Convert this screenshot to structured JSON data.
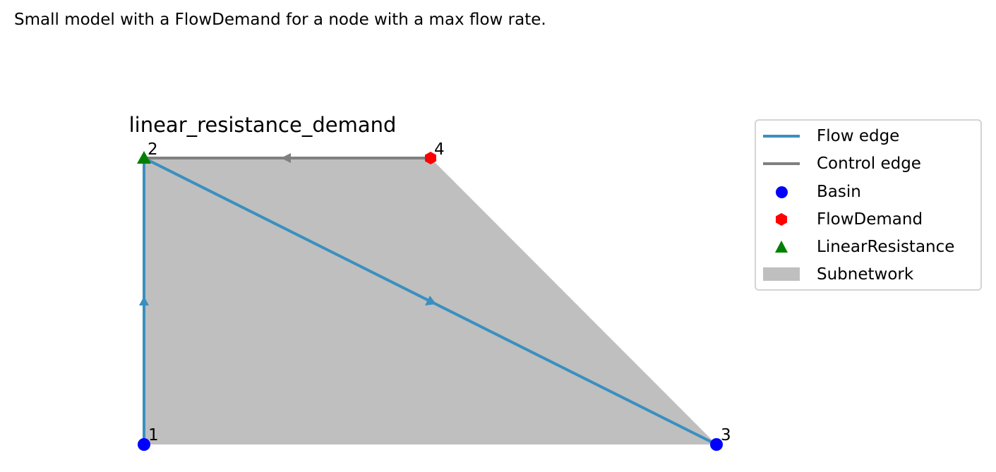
{
  "caption": "Small model with a FlowDemand for a node with a max flow rate.",
  "subnetwork_title": "linear_resistance_demand",
  "nodes": [
    {
      "id": "1",
      "label": "1",
      "type": "Basin"
    },
    {
      "id": "2",
      "label": "2",
      "type": "LinearResistance"
    },
    {
      "id": "3",
      "label": "3",
      "type": "Basin"
    },
    {
      "id": "4",
      "label": "4",
      "type": "FlowDemand"
    }
  ],
  "edges": [
    {
      "from": "1",
      "to": "2",
      "type": "Flow edge"
    },
    {
      "from": "2",
      "to": "3",
      "type": "Flow edge"
    },
    {
      "from": "4",
      "to": "2",
      "type": "Control edge"
    }
  ],
  "colors": {
    "flow_edge": "#3a8fc0",
    "control_edge": "#808080",
    "basin": "#0000ff",
    "flow_demand": "#ff0000",
    "linear_resistance": "#008000",
    "subnetwork": "#bfbfbf"
  },
  "legend": {
    "items": [
      {
        "label": "Flow edge",
        "icon": "line",
        "color": "#3a8fc0"
      },
      {
        "label": "Control edge",
        "icon": "line",
        "color": "#808080"
      },
      {
        "label": "Basin",
        "icon": "circle",
        "color": "#0000ff"
      },
      {
        "label": "FlowDemand",
        "icon": "hexagon",
        "color": "#ff0000"
      },
      {
        "label": "LinearResistance",
        "icon": "triangle",
        "color": "#008000"
      },
      {
        "label": "Subnetwork",
        "icon": "rect",
        "color": "#bfbfbf"
      }
    ]
  }
}
